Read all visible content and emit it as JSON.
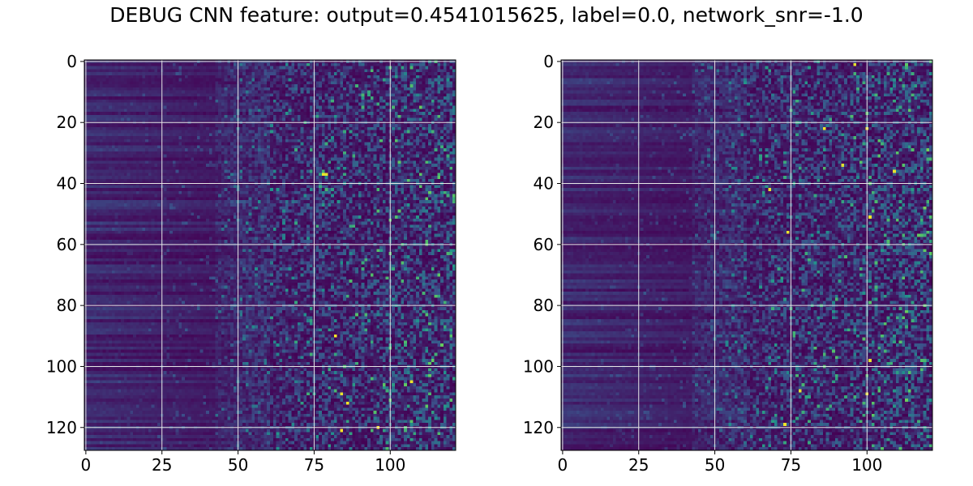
{
  "title": "DEBUG CNN feature: output=0.4541015625, label=0.0, network_snr=-1.0",
  "colors": {
    "background": "#ffffff",
    "grid": "#e6e6e6",
    "axes": "#000000",
    "colormap": [
      "#440154",
      "#3b528b",
      "#21918c",
      "#5ec962",
      "#fde725"
    ]
  },
  "chart_data": [
    {
      "type": "heatmap",
      "colormap": "viridis",
      "rows": 128,
      "cols": 122,
      "xlim": [
        -0.5,
        121.5
      ],
      "ylim": [
        127.5,
        -0.5
      ],
      "xticks": [
        0,
        25,
        50,
        75,
        100
      ],
      "xtick_labels": [
        "0",
        "25",
        "50",
        "75",
        "100"
      ],
      "yticks": [
        0,
        20,
        40,
        60,
        80,
        100,
        120
      ],
      "ytick_labels": [
        "0",
        "20",
        "40",
        "60",
        "80",
        "100",
        "120"
      ],
      "grid": true,
      "bright_cells": [
        [
          37,
          79
        ],
        [
          37,
          78
        ],
        [
          120,
          96
        ],
        [
          112,
          86
        ],
        [
          109,
          84
        ],
        [
          90,
          82
        ],
        [
          121,
          84
        ],
        [
          105,
          107
        ]
      ]
    },
    {
      "type": "heatmap",
      "colormap": "viridis",
      "rows": 128,
      "cols": 122,
      "xlim": [
        -0.5,
        121.5
      ],
      "ylim": [
        127.5,
        -0.5
      ],
      "xticks": [
        0,
        25,
        50,
        75,
        100
      ],
      "xtick_labels": [
        "0",
        "25",
        "50",
        "75",
        "100"
      ],
      "yticks": [
        0,
        20,
        40,
        60,
        80,
        100,
        120
      ],
      "ytick_labels": [
        "0",
        "20",
        "40",
        "60",
        "80",
        "100",
        "120"
      ],
      "grid": true,
      "bright_cells": [
        [
          22,
          86
        ],
        [
          22,
          100
        ],
        [
          34,
          92
        ],
        [
          36,
          109
        ],
        [
          42,
          68
        ],
        [
          56,
          74
        ],
        [
          109,
          100
        ],
        [
          108,
          78
        ],
        [
          119,
          73
        ],
        [
          98,
          101
        ],
        [
          51,
          101
        ],
        [
          1,
          96
        ]
      ]
    }
  ]
}
